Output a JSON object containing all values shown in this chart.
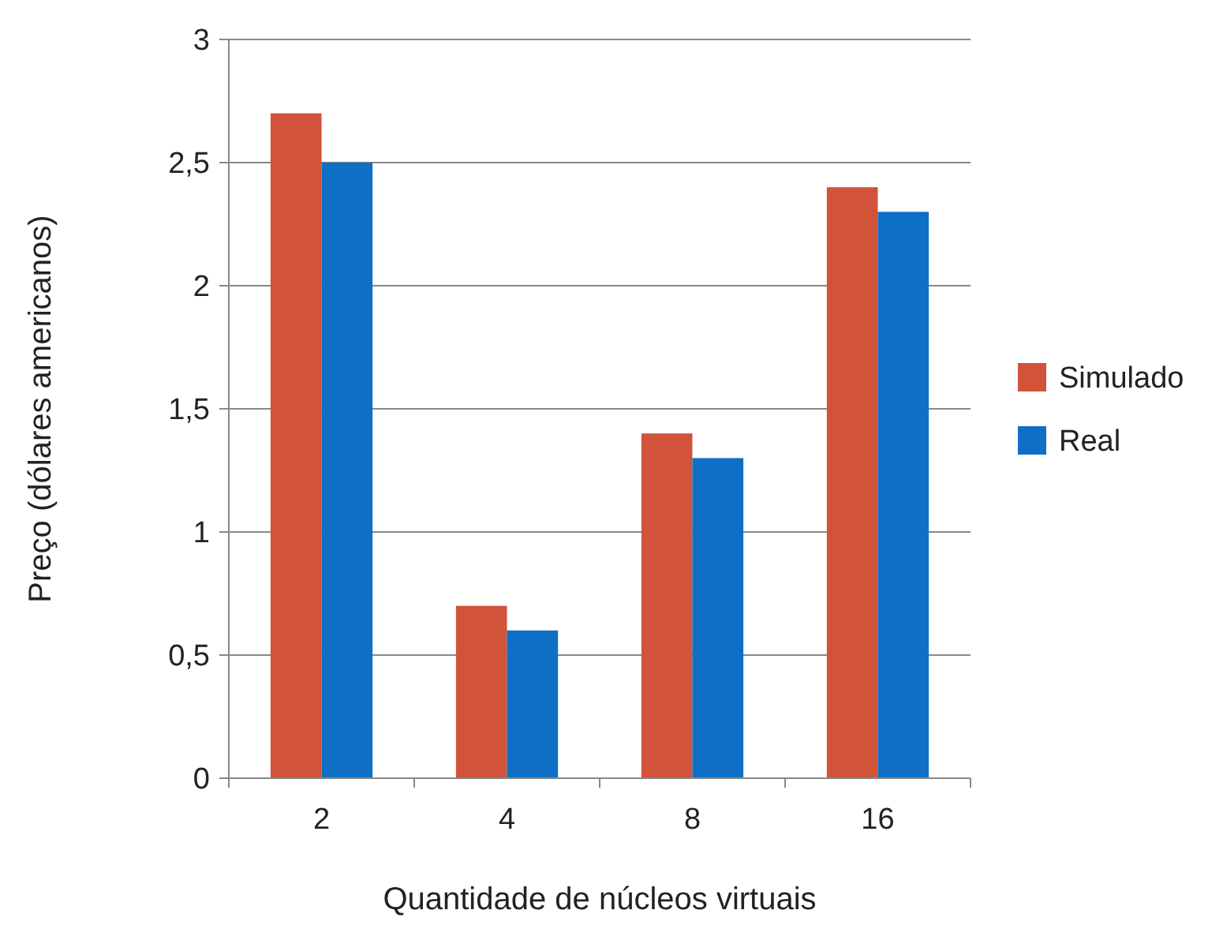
{
  "chart_data": {
    "type": "bar",
    "xlabel": "Quantidade de núcleos virtuais",
    "ylabel": "Preço (dólares americanos)",
    "categories": [
      "2",
      "4",
      "8",
      "16"
    ],
    "series": [
      {
        "name": "Simulado",
        "color": "#d0533a",
        "values": [
          2.7,
          0.7,
          1.4,
          2.4
        ]
      },
      {
        "name": "Real",
        "color": "#0f6fc6",
        "values": [
          2.5,
          0.6,
          1.3,
          2.3
        ]
      }
    ],
    "ylim": [
      0,
      3
    ],
    "yticks": [
      0,
      {
        "value": 0.5,
        "label": "0,5"
      },
      1,
      {
        "value": 1.5,
        "label": "1,5"
      },
      2,
      {
        "value": 2.5,
        "label": "2,5"
      },
      3
    ],
    "grid": "y",
    "legend": "right"
  }
}
